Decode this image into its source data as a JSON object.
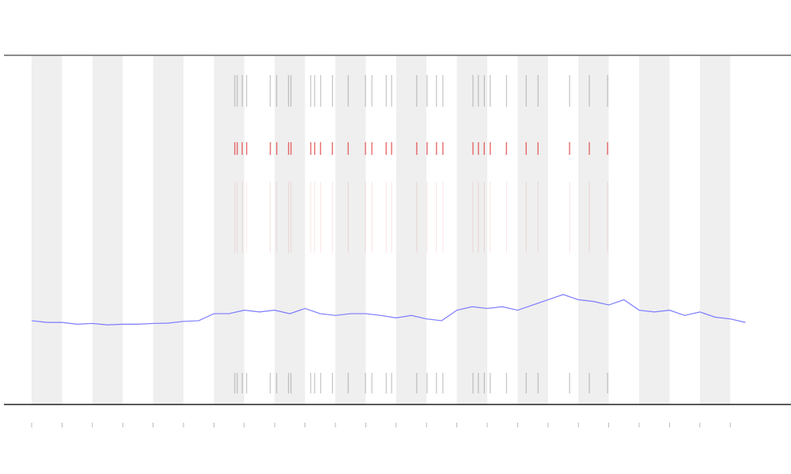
{
  "chart_data": {
    "type": "line",
    "x": [
      0,
      0.5,
      1,
      1.5,
      2,
      2.5,
      3,
      3.5,
      4,
      4.5,
      5,
      5.5,
      6,
      6.5,
      7,
      7.5,
      8,
      8.5,
      9,
      9.5,
      10,
      10.5,
      11,
      11.5,
      12,
      12.5,
      13,
      13.5,
      14,
      14.5,
      15,
      15.5,
      16,
      16.5,
      17,
      17.5,
      18,
      18.5,
      19,
      19.5,
      20,
      20.5,
      21,
      21.5,
      22,
      22.5,
      23,
      23.5
    ],
    "series": [
      {
        "color": "#7b7bff",
        "values": [
          24,
          23.5,
          23.5,
          23,
          23.2,
          22.8,
          23,
          23,
          23.2,
          23.3,
          23.8,
          24,
          26,
          26,
          27,
          26.5,
          27,
          26,
          27.5,
          26,
          25.5,
          26,
          26,
          25.5,
          24.8,
          25.5,
          24.5,
          24,
          27,
          28,
          27.5,
          28,
          27,
          28.5,
          30,
          31.5,
          30,
          29.5,
          28.5,
          30,
          27,
          26.5,
          27,
          25.5,
          26.5,
          25,
          24.5,
          23.5
        ]
      }
    ],
    "events": [
      6.69,
      6.77,
      6.93,
      7.08,
      7.86,
      8.07,
      8.46,
      8.54,
      9.19,
      9.32,
      9.51,
      9.9,
      10.42,
      10.99,
      11.2,
      11.67,
      11.85,
      12.68,
      13.02,
      13.33,
      13.54,
      14.53,
      14.71,
      14.9,
      15.1,
      15.63,
      16.28,
      16.67,
      17.71,
      18.36,
      18.96
    ],
    "event_colors": [
      "#888888",
      "#e03030"
    ],
    "xlim": [
      0,
      24
    ],
    "ylim": [
      0,
      100
    ],
    "xticks": [
      0,
      1,
      2,
      3,
      4,
      5,
      6,
      7,
      8,
      9,
      10,
      11,
      12,
      13,
      14,
      15,
      16,
      17,
      18,
      19,
      20,
      21,
      22,
      23
    ]
  }
}
